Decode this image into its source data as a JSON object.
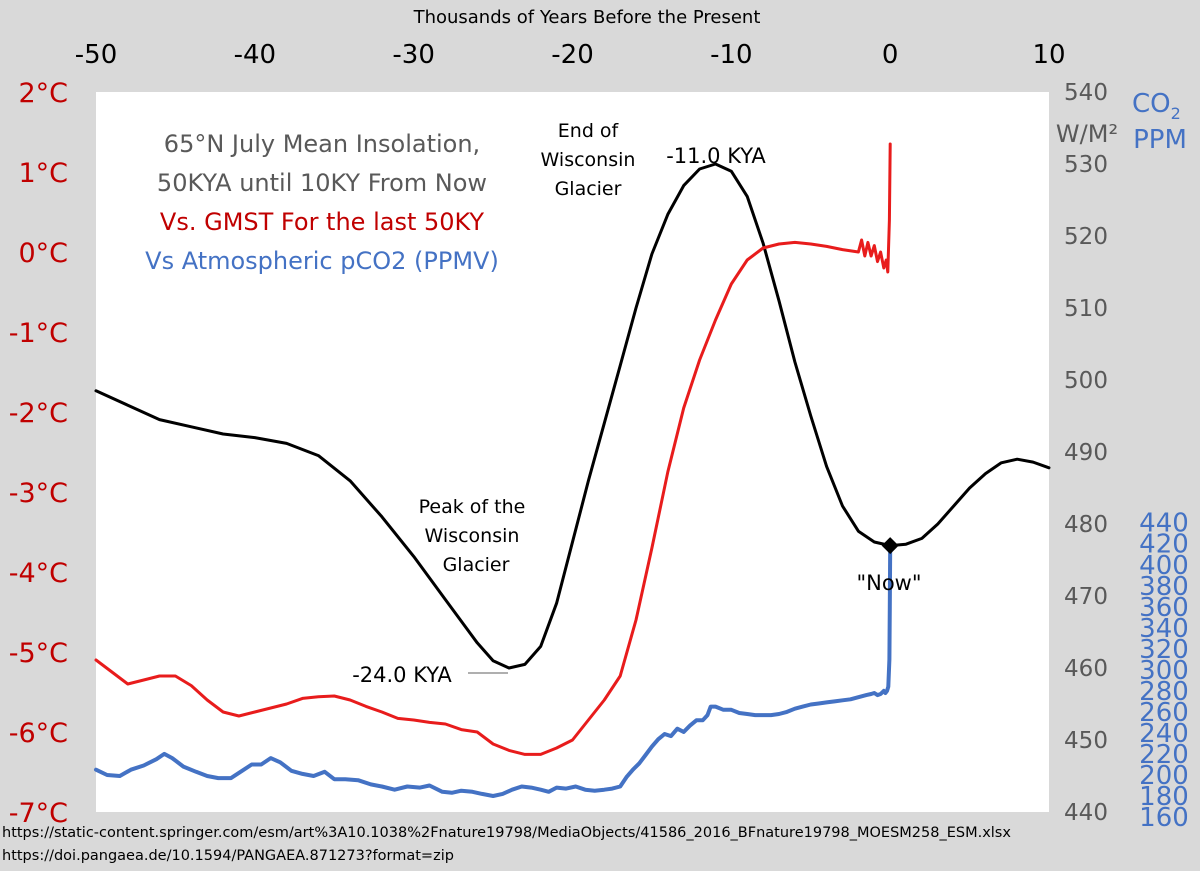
{
  "chart_data": {
    "type": "line",
    "x_axis": {
      "label": "Thousands of Years Before the Present",
      "ticks": [
        -50,
        -40,
        -30,
        -20,
        -10,
        0,
        10
      ],
      "range": [
        -50,
        10
      ]
    },
    "y_axes": {
      "temperature": {
        "ticks": [
          "2°C",
          "1°C",
          "0°C",
          "-1°C",
          "-2°C",
          "-3°C",
          "-4°C",
          "-5°C",
          "-6°C",
          "-7°C"
        ],
        "range": [
          -7,
          2
        ],
        "color": "#c00000"
      },
      "insolation": {
        "label": "W/M²",
        "ticks": [
          540,
          530,
          520,
          510,
          500,
          490,
          480,
          470,
          460,
          450,
          440
        ],
        "range": [
          440,
          540
        ],
        "color": "#595959"
      },
      "co2": {
        "label_main": "CO",
        "label_sub": "2",
        "label_unit": "PPM",
        "ticks": [
          440,
          420,
          400,
          380,
          360,
          340,
          320,
          300,
          280,
          260,
          240,
          220,
          200,
          180,
          160
        ],
        "range": [
          140,
          450
        ],
        "color": "#4472c4"
      }
    },
    "legend": {
      "line1": "65°N July Mean Insolation,",
      "line2": "50KYA until 10KY From Now",
      "line3": "Vs. GMST For the last 50KY",
      "line4": "Vs Atmospheric pCO2 (PPMV)"
    },
    "annotations": {
      "end_line1": "End of",
      "end_line2": "Wisconsin",
      "end_line3": "Glacier",
      "kya_max": "-11.0 KYA",
      "peak_line1": "Peak of the",
      "peak_line2": "Wisconsin",
      "peak_line3": "Glacier",
      "kya_min": "-24.0 KYA",
      "now": "\"Now\""
    },
    "series": [
      {
        "key": "insolation",
        "axis": "insolation",
        "color": "#000000",
        "points": [
          [
            -50,
            498.5
          ],
          [
            -48,
            496.5
          ],
          [
            -46,
            494.5
          ],
          [
            -44,
            493.5
          ],
          [
            -42,
            492.5
          ],
          [
            -40,
            492
          ],
          [
            -38,
            491.2
          ],
          [
            -36,
            489.5
          ],
          [
            -34,
            486
          ],
          [
            -32,
            481
          ],
          [
            -30,
            475.5
          ],
          [
            -28,
            469.5
          ],
          [
            -26,
            463.5
          ],
          [
            -25,
            461
          ],
          [
            -24,
            460
          ],
          [
            -23,
            460.5
          ],
          [
            -22,
            463
          ],
          [
            -21,
            469
          ],
          [
            -20,
            477.5
          ],
          [
            -19,
            486
          ],
          [
            -18,
            494
          ],
          [
            -17,
            502
          ],
          [
            -16,
            510
          ],
          [
            -15,
            517.5
          ],
          [
            -14,
            523
          ],
          [
            -13,
            527
          ],
          [
            -12,
            529.3
          ],
          [
            -11,
            530
          ],
          [
            -10,
            529
          ],
          [
            -9,
            525.5
          ],
          [
            -8,
            519
          ],
          [
            -7,
            511
          ],
          [
            -6,
            502.5
          ],
          [
            -5,
            495
          ],
          [
            -4,
            488
          ],
          [
            -3,
            482.5
          ],
          [
            -2,
            479
          ],
          [
            -1,
            477.5
          ],
          [
            0,
            477
          ],
          [
            1,
            477.2
          ],
          [
            2,
            478
          ],
          [
            3,
            480
          ],
          [
            4,
            482.5
          ],
          [
            5,
            485
          ],
          [
            6,
            487
          ],
          [
            7,
            488.5
          ],
          [
            8,
            489
          ],
          [
            9,
            488.6
          ],
          [
            10,
            487.8
          ]
        ]
      },
      {
        "key": "temperature",
        "axis": "temperature",
        "color": "#e81c1c",
        "points": [
          [
            -50,
            -5.1
          ],
          [
            -49,
            -5.25
          ],
          [
            -48,
            -5.4
          ],
          [
            -47,
            -5.35
          ],
          [
            -46,
            -5.3
          ],
          [
            -45,
            -5.3
          ],
          [
            -44,
            -5.42
          ],
          [
            -43,
            -5.6
          ],
          [
            -42,
            -5.75
          ],
          [
            -41,
            -5.8
          ],
          [
            -40,
            -5.75
          ],
          [
            -39,
            -5.7
          ],
          [
            -38,
            -5.65
          ],
          [
            -37,
            -5.58
          ],
          [
            -36,
            -5.56
          ],
          [
            -35,
            -5.55
          ],
          [
            -34,
            -5.6
          ],
          [
            -33,
            -5.68
          ],
          [
            -32,
            -5.75
          ],
          [
            -31,
            -5.83
          ],
          [
            -30,
            -5.85
          ],
          [
            -29,
            -5.88
          ],
          [
            -28,
            -5.9
          ],
          [
            -27,
            -5.97
          ],
          [
            -26,
            -6.0
          ],
          [
            -25,
            -6.15
          ],
          [
            -24,
            -6.23
          ],
          [
            -23,
            -6.28
          ],
          [
            -22,
            -6.28
          ],
          [
            -21,
            -6.2
          ],
          [
            -20,
            -6.1
          ],
          [
            -19,
            -5.85
          ],
          [
            -18,
            -5.6
          ],
          [
            -17,
            -5.3
          ],
          [
            -16,
            -4.6
          ],
          [
            -15,
            -3.7
          ],
          [
            -14,
            -2.75
          ],
          [
            -13,
            -1.95
          ],
          [
            -12,
            -1.35
          ],
          [
            -11,
            -0.85
          ],
          [
            -10,
            -0.4
          ],
          [
            -9,
            -0.1
          ],
          [
            -8,
            0.05
          ],
          [
            -7,
            0.1
          ],
          [
            -6,
            0.12
          ],
          [
            -5,
            0.1
          ],
          [
            -4,
            0.07
          ],
          [
            -3,
            0.03
          ],
          [
            -2,
            0.0
          ],
          [
            -1.8,
            0.15
          ],
          [
            -1.6,
            -0.05
          ],
          [
            -1.4,
            0.12
          ],
          [
            -1.2,
            -0.05
          ],
          [
            -1.0,
            0.08
          ],
          [
            -0.8,
            -0.12
          ],
          [
            -0.6,
            0.0
          ],
          [
            -0.4,
            -0.2
          ],
          [
            -0.25,
            -0.1
          ],
          [
            -0.15,
            -0.25
          ],
          [
            -0.05,
            0.4
          ],
          [
            0.0,
            1.35
          ]
        ]
      },
      {
        "key": "co2",
        "axis": "co2",
        "color": "#4472c4",
        "points": [
          [
            -50,
            205
          ],
          [
            -49.3,
            200
          ],
          [
            -48.5,
            199
          ],
          [
            -47.8,
            205
          ],
          [
            -47,
            209
          ],
          [
            -46.2,
            215
          ],
          [
            -45.7,
            220
          ],
          [
            -45.2,
            216
          ],
          [
            -44.5,
            208
          ],
          [
            -43.7,
            203
          ],
          [
            -43,
            199
          ],
          [
            -42.3,
            197
          ],
          [
            -41.5,
            197
          ],
          [
            -40.8,
            204
          ],
          [
            -40.2,
            210
          ],
          [
            -39.6,
            210
          ],
          [
            -39,
            216
          ],
          [
            -38.4,
            212
          ],
          [
            -37.7,
            204
          ],
          [
            -37,
            201
          ],
          [
            -36.3,
            199
          ],
          [
            -35.6,
            203
          ],
          [
            -35,
            196
          ],
          [
            -34.3,
            196
          ],
          [
            -33.5,
            195
          ],
          [
            -32.7,
            191
          ],
          [
            -32,
            189
          ],
          [
            -31.2,
            186
          ],
          [
            -30.4,
            189
          ],
          [
            -29.6,
            188
          ],
          [
            -29,
            190
          ],
          [
            -28.2,
            184
          ],
          [
            -27.6,
            183
          ],
          [
            -27,
            185
          ],
          [
            -26.3,
            184
          ],
          [
            -25.7,
            182
          ],
          [
            -25,
            180
          ],
          [
            -24.4,
            182
          ],
          [
            -23.8,
            186
          ],
          [
            -23.2,
            189
          ],
          [
            -22.6,
            188
          ],
          [
            -22,
            186
          ],
          [
            -21.5,
            184
          ],
          [
            -21,
            188
          ],
          [
            -20.4,
            187
          ],
          [
            -19.8,
            189
          ],
          [
            -19.2,
            186
          ],
          [
            -18.6,
            185
          ],
          [
            -18,
            186
          ],
          [
            -17.5,
            187
          ],
          [
            -17,
            189
          ],
          [
            -16.6,
            198
          ],
          [
            -16.2,
            205
          ],
          [
            -15.8,
            211
          ],
          [
            -15.4,
            219
          ],
          [
            -15,
            227
          ],
          [
            -14.6,
            234
          ],
          [
            -14.2,
            239
          ],
          [
            -13.8,
            237
          ],
          [
            -13.4,
            244
          ],
          [
            -13,
            241
          ],
          [
            -12.6,
            247
          ],
          [
            -12.2,
            252
          ],
          [
            -11.8,
            252
          ],
          [
            -11.5,
            257
          ],
          [
            -11.3,
            265
          ],
          [
            -11,
            265
          ],
          [
            -10.5,
            262
          ],
          [
            -10,
            262
          ],
          [
            -9.5,
            259
          ],
          [
            -9,
            258
          ],
          [
            -8.5,
            257
          ],
          [
            -8,
            257
          ],
          [
            -7.5,
            257
          ],
          [
            -7,
            258
          ],
          [
            -6.5,
            260
          ],
          [
            -6,
            263
          ],
          [
            -5.5,
            265
          ],
          [
            -5,
            267
          ],
          [
            -4.5,
            268
          ],
          [
            -4,
            269
          ],
          [
            -3.5,
            270
          ],
          [
            -3,
            271
          ],
          [
            -2.5,
            272
          ],
          [
            -2,
            274
          ],
          [
            -1.5,
            276
          ],
          [
            -1.2,
            277
          ],
          [
            -1,
            278
          ],
          [
            -0.8,
            276
          ],
          [
            -0.6,
            277
          ],
          [
            -0.4,
            280
          ],
          [
            -0.3,
            278
          ],
          [
            -0.2,
            280
          ],
          [
            -0.12,
            284
          ],
          [
            -0.05,
            310
          ],
          [
            -0.02,
            360
          ],
          [
            0.0,
            418
          ]
        ]
      }
    ],
    "now_marker": {
      "x": 0,
      "insolation": 477
    }
  },
  "sources": {
    "line1": "https://static-content.springer.com/esm/art%3A10.1038%2Fnature19798/MediaObjects/41586_2016_BFnature19798_MOESM258_ESM.xlsx",
    "line2": "https://doi.pangaea.de/10.1594/PANGAEA.871273?format=zip"
  }
}
